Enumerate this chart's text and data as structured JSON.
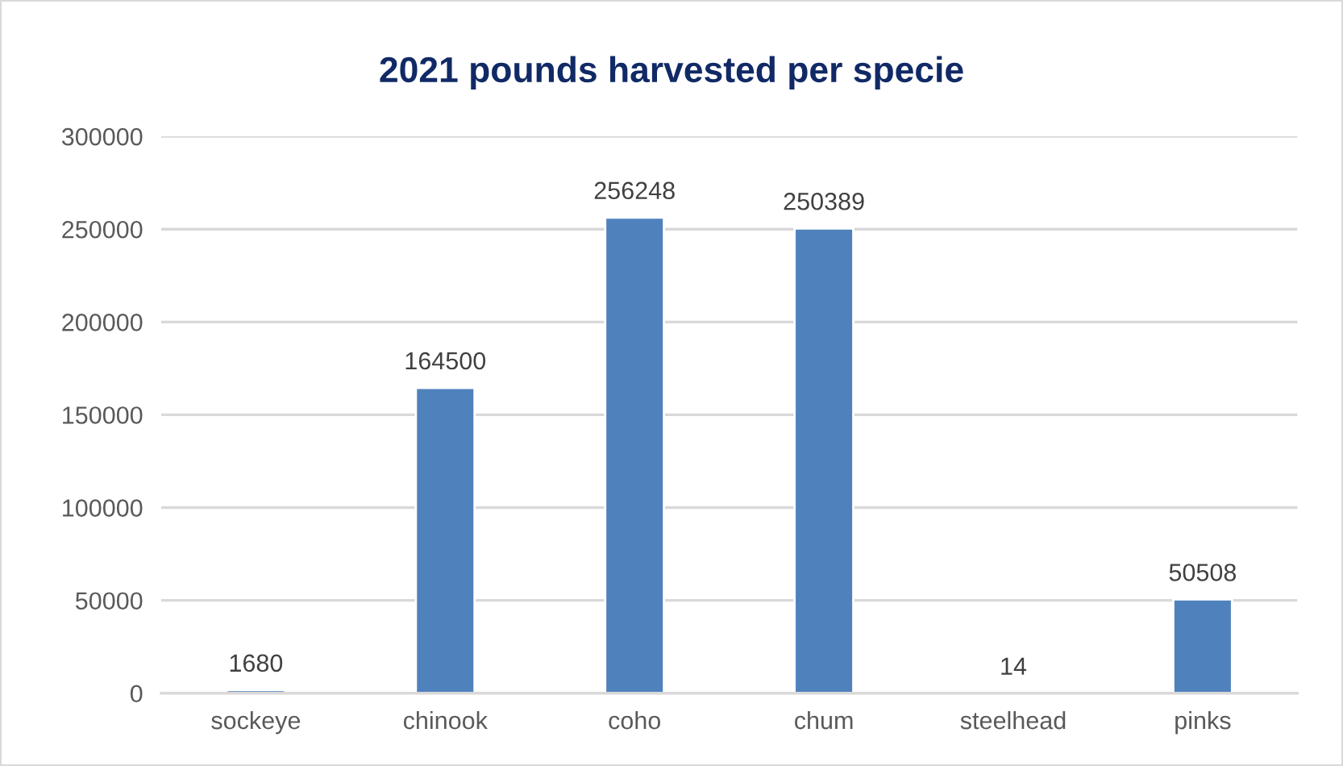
{
  "chart_data": {
    "type": "bar",
    "title": "2021 pounds harvested per specie",
    "categories": [
      "sockeye",
      "chinook",
      "coho",
      "chum",
      "steelhead",
      "pinks"
    ],
    "values": [
      1680,
      164500,
      256248,
      250389,
      14,
      50508
    ],
    "color": "#4f81bd",
    "ylim": [
      0,
      300000
    ],
    "yticks": [
      0,
      50000,
      100000,
      150000,
      200000,
      250000,
      300000
    ],
    "grid": "y",
    "data_labels": true
  }
}
